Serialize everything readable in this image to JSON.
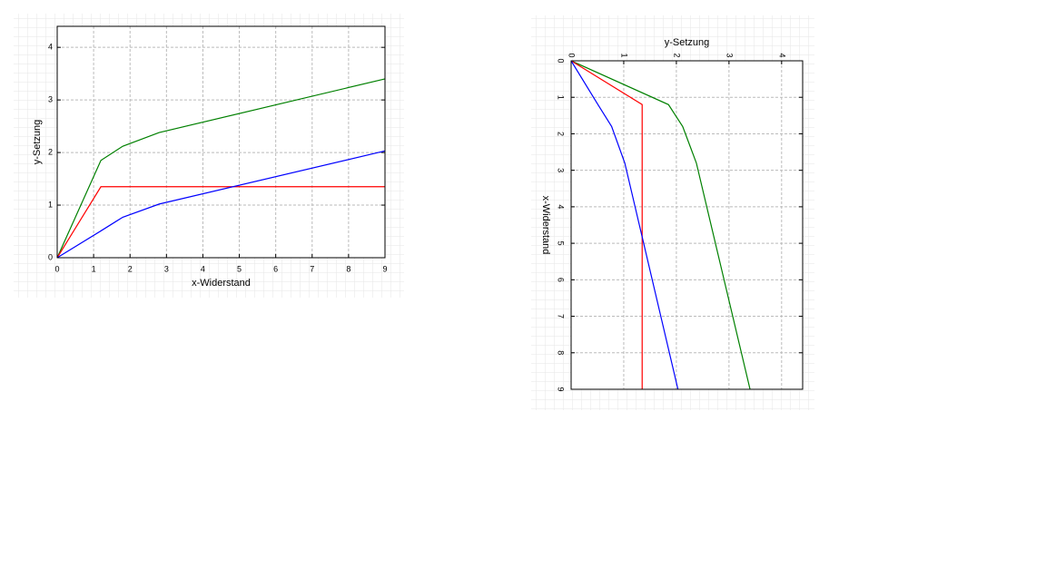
{
  "chart_data": [
    {
      "type": "line",
      "rotated": false,
      "xlabel": "x-Widerstand",
      "ylabel": "y-Setzung",
      "x": [
        0,
        1.2,
        1.8,
        2.8,
        9
      ],
      "series": [
        {
          "color": "#008000",
          "values": [
            0,
            1.85,
            2.12,
            2.38,
            3.4
          ]
        },
        {
          "color": "#ff0000",
          "values": [
            0,
            1.35,
            1.35,
            1.35,
            1.35
          ]
        },
        {
          "color": "#0000ff",
          "values": [
            0,
            0.51,
            0.77,
            1.02,
            2.03
          ]
        }
      ],
      "xlim": [
        0,
        9
      ],
      "xticks": [
        0,
        1,
        2,
        3,
        4,
        5,
        6,
        7,
        8,
        9
      ],
      "ylim": [
        0,
        4.4
      ],
      "yticks": [
        0,
        1,
        2,
        3,
        4
      ],
      "grid": true
    },
    {
      "type": "line",
      "rotated": true,
      "xlabel": "x-Widerstand",
      "ylabel": "y-Setzung",
      "x": [
        0,
        1.2,
        1.8,
        2.8,
        9
      ],
      "series": [
        {
          "color": "#008000",
          "values": [
            0,
            1.85,
            2.12,
            2.38,
            3.4
          ]
        },
        {
          "color": "#ff0000",
          "values": [
            0,
            1.35,
            1.35,
            1.35,
            1.35
          ]
        },
        {
          "color": "#0000ff",
          "values": [
            0,
            0.51,
            0.77,
            1.02,
            2.03
          ]
        }
      ],
      "xlim": [
        0,
        9
      ],
      "xticks": [
        0,
        1,
        2,
        3,
        4,
        5,
        6,
        7,
        8,
        9
      ],
      "ylim": [
        0,
        4.4
      ],
      "yticks": [
        0,
        1,
        2,
        3,
        4
      ],
      "grid": true
    }
  ]
}
